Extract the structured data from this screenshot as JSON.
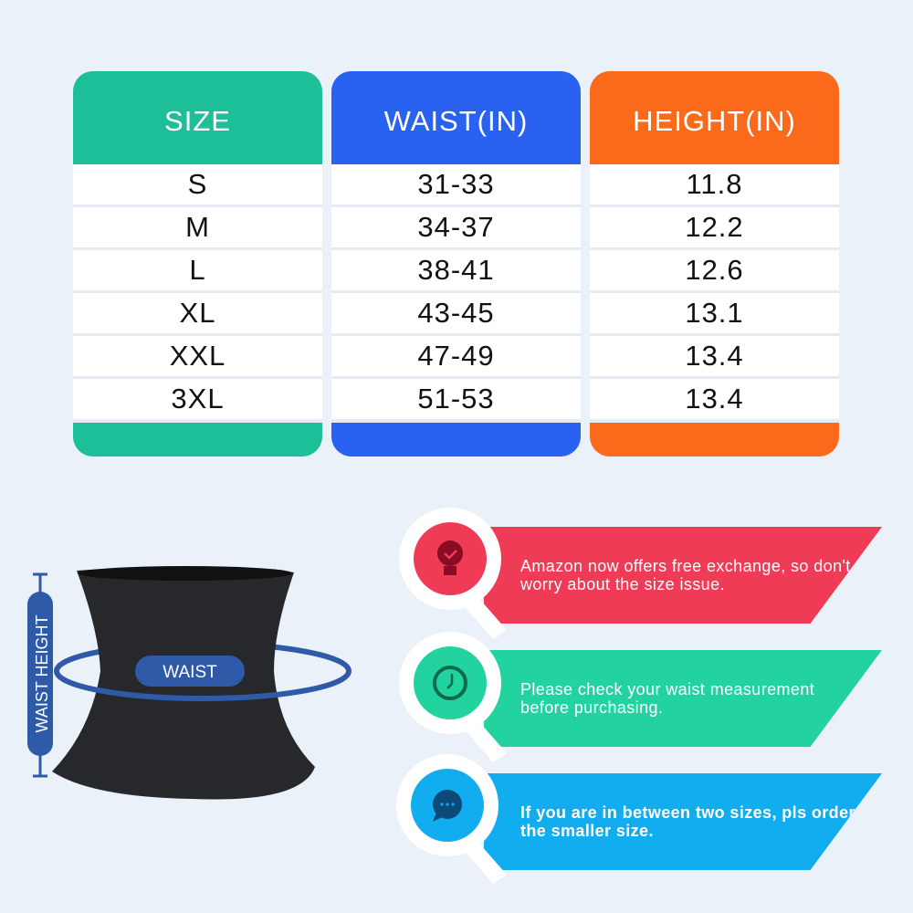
{
  "table": {
    "headers": [
      "SIZE",
      "WAIST(IN)",
      "HEIGHT(IN)"
    ],
    "colors": [
      "#1cbf98",
      "#2962f0",
      "#fb6a1b"
    ],
    "rows": [
      [
        "S",
        "31-33",
        "11.8"
      ],
      [
        "M",
        "34-37",
        "12.2"
      ],
      [
        "L",
        "38-41",
        "12.6"
      ],
      [
        "XL",
        "43-45",
        "13.1"
      ],
      [
        "XXL",
        "47-49",
        "13.4"
      ],
      [
        "3XL",
        "51-53",
        "13.4"
      ]
    ]
  },
  "diagram": {
    "waist_label": "WAIST",
    "height_label": "WAIST HEIGHT",
    "accent": "#2f5aa8"
  },
  "tips": [
    {
      "icon": "lightbulb-check-icon",
      "color": "#ef3b56",
      "text": "Amazon now offers free exchange, so don't worry about the size issue."
    },
    {
      "icon": "clock-icon",
      "color": "#22d3a0",
      "text": "Please check your waist measurement before purchasing."
    },
    {
      "icon": "chat-bubble-icon",
      "color": "#12adee",
      "text": "If you are in between two sizes, pls order the smaller size."
    }
  ]
}
